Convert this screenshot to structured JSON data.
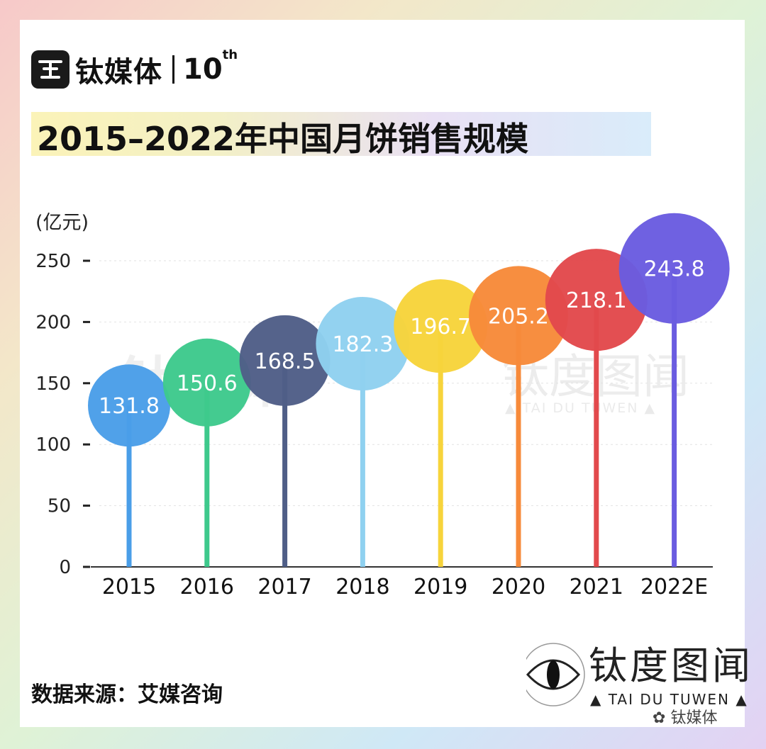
{
  "brand": {
    "name": "钛媒体",
    "anniversary": "10",
    "anniversary_sup": "th"
  },
  "title": "2015–2022年中国月饼销售规模",
  "unit": "(亿元)",
  "source": "数据来源：艾媒咨询",
  "watermark": {
    "name": "钛度图闻",
    "sub": "▲ TAI DU TUWEN ▲",
    "foot": "钛媒体"
  },
  "chart_data": {
    "type": "bar",
    "title": "2015–2022年中国月饼销售规模",
    "ylabel": "(亿元)",
    "xlabel": "",
    "categories": [
      "2015",
      "2016",
      "2017",
      "2018",
      "2019",
      "2020",
      "2021",
      "2022E"
    ],
    "values": [
      131.8,
      150.6,
      168.5,
      182.3,
      196.7,
      205.2,
      218.1,
      243.8
    ],
    "value_labels": [
      "131.8",
      "150.6",
      "168.5",
      "182.3",
      "196.7",
      "205.2",
      "218.1",
      "243.8"
    ],
    "colors": [
      "#4a9ee8",
      "#3ec98c",
      "#4f5e87",
      "#8fd1f0",
      "#f7d43b",
      "#f78a3a",
      "#e2494c",
      "#6a5ce0"
    ],
    "yticks": [
      "0",
      "50",
      "100",
      "150",
      "200",
      "250"
    ],
    "ylim": [
      0,
      250
    ],
    "grid": true,
    "legend": "none"
  }
}
